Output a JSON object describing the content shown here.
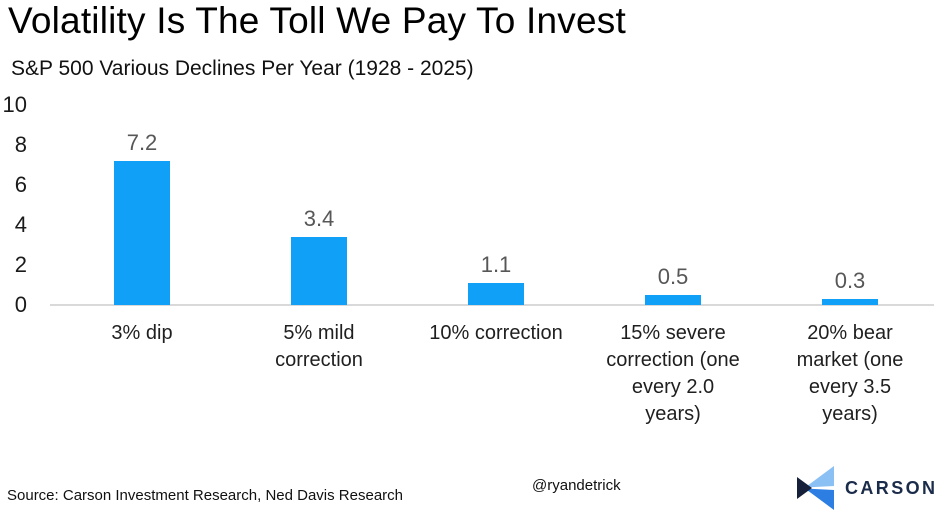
{
  "header": {
    "title": "Volatility Is The Toll We Pay To Invest",
    "subtitle": "S&P 500 Various Declines Per Year (1928 - 2025)"
  },
  "chart_data": {
    "type": "bar",
    "title": "Volatility Is The Toll We Pay To Invest",
    "subtitle": "S&P 500 Various Declines Per Year (1928 - 2025)",
    "categories": [
      "3% dip",
      "5% mild correction",
      "10% correction",
      "15% severe correction (one every 2.0 years)",
      "20% bear market (one every 3.5 years)"
    ],
    "category_lines": [
      [
        "3% dip"
      ],
      [
        "5% mild",
        "correction"
      ],
      [
        "10% correction"
      ],
      [
        "15% severe",
        "correction (one",
        "every 2.0",
        "years)"
      ],
      [
        "20% bear",
        "market (one",
        "every 3.5",
        "years)"
      ]
    ],
    "values": [
      7.2,
      3.4,
      1.1,
      0.5,
      0.3
    ],
    "value_labels": [
      "7.2",
      "3.4",
      "1.1",
      "0.5",
      "0.3"
    ],
    "xlabel": "",
    "ylabel": "",
    "ylim": [
      0,
      10
    ],
    "yticks": [
      0,
      2,
      4,
      6,
      8,
      10
    ],
    "grid": false,
    "legend": "none",
    "bar_color": "#11a0f7",
    "axis_line_color": "#d9d9d9",
    "value_label_color": "#575757"
  },
  "footer": {
    "source": "Source: Carson Investment Research, Ned Davis Research",
    "handle": "@ryandetrick",
    "logo_text": "CARSON",
    "logo_colors": {
      "light_blue": "#8bc0f5",
      "navy": "#16203a",
      "blue": "#2c7ee2",
      "wordmark": "#1b2b4a"
    }
  }
}
